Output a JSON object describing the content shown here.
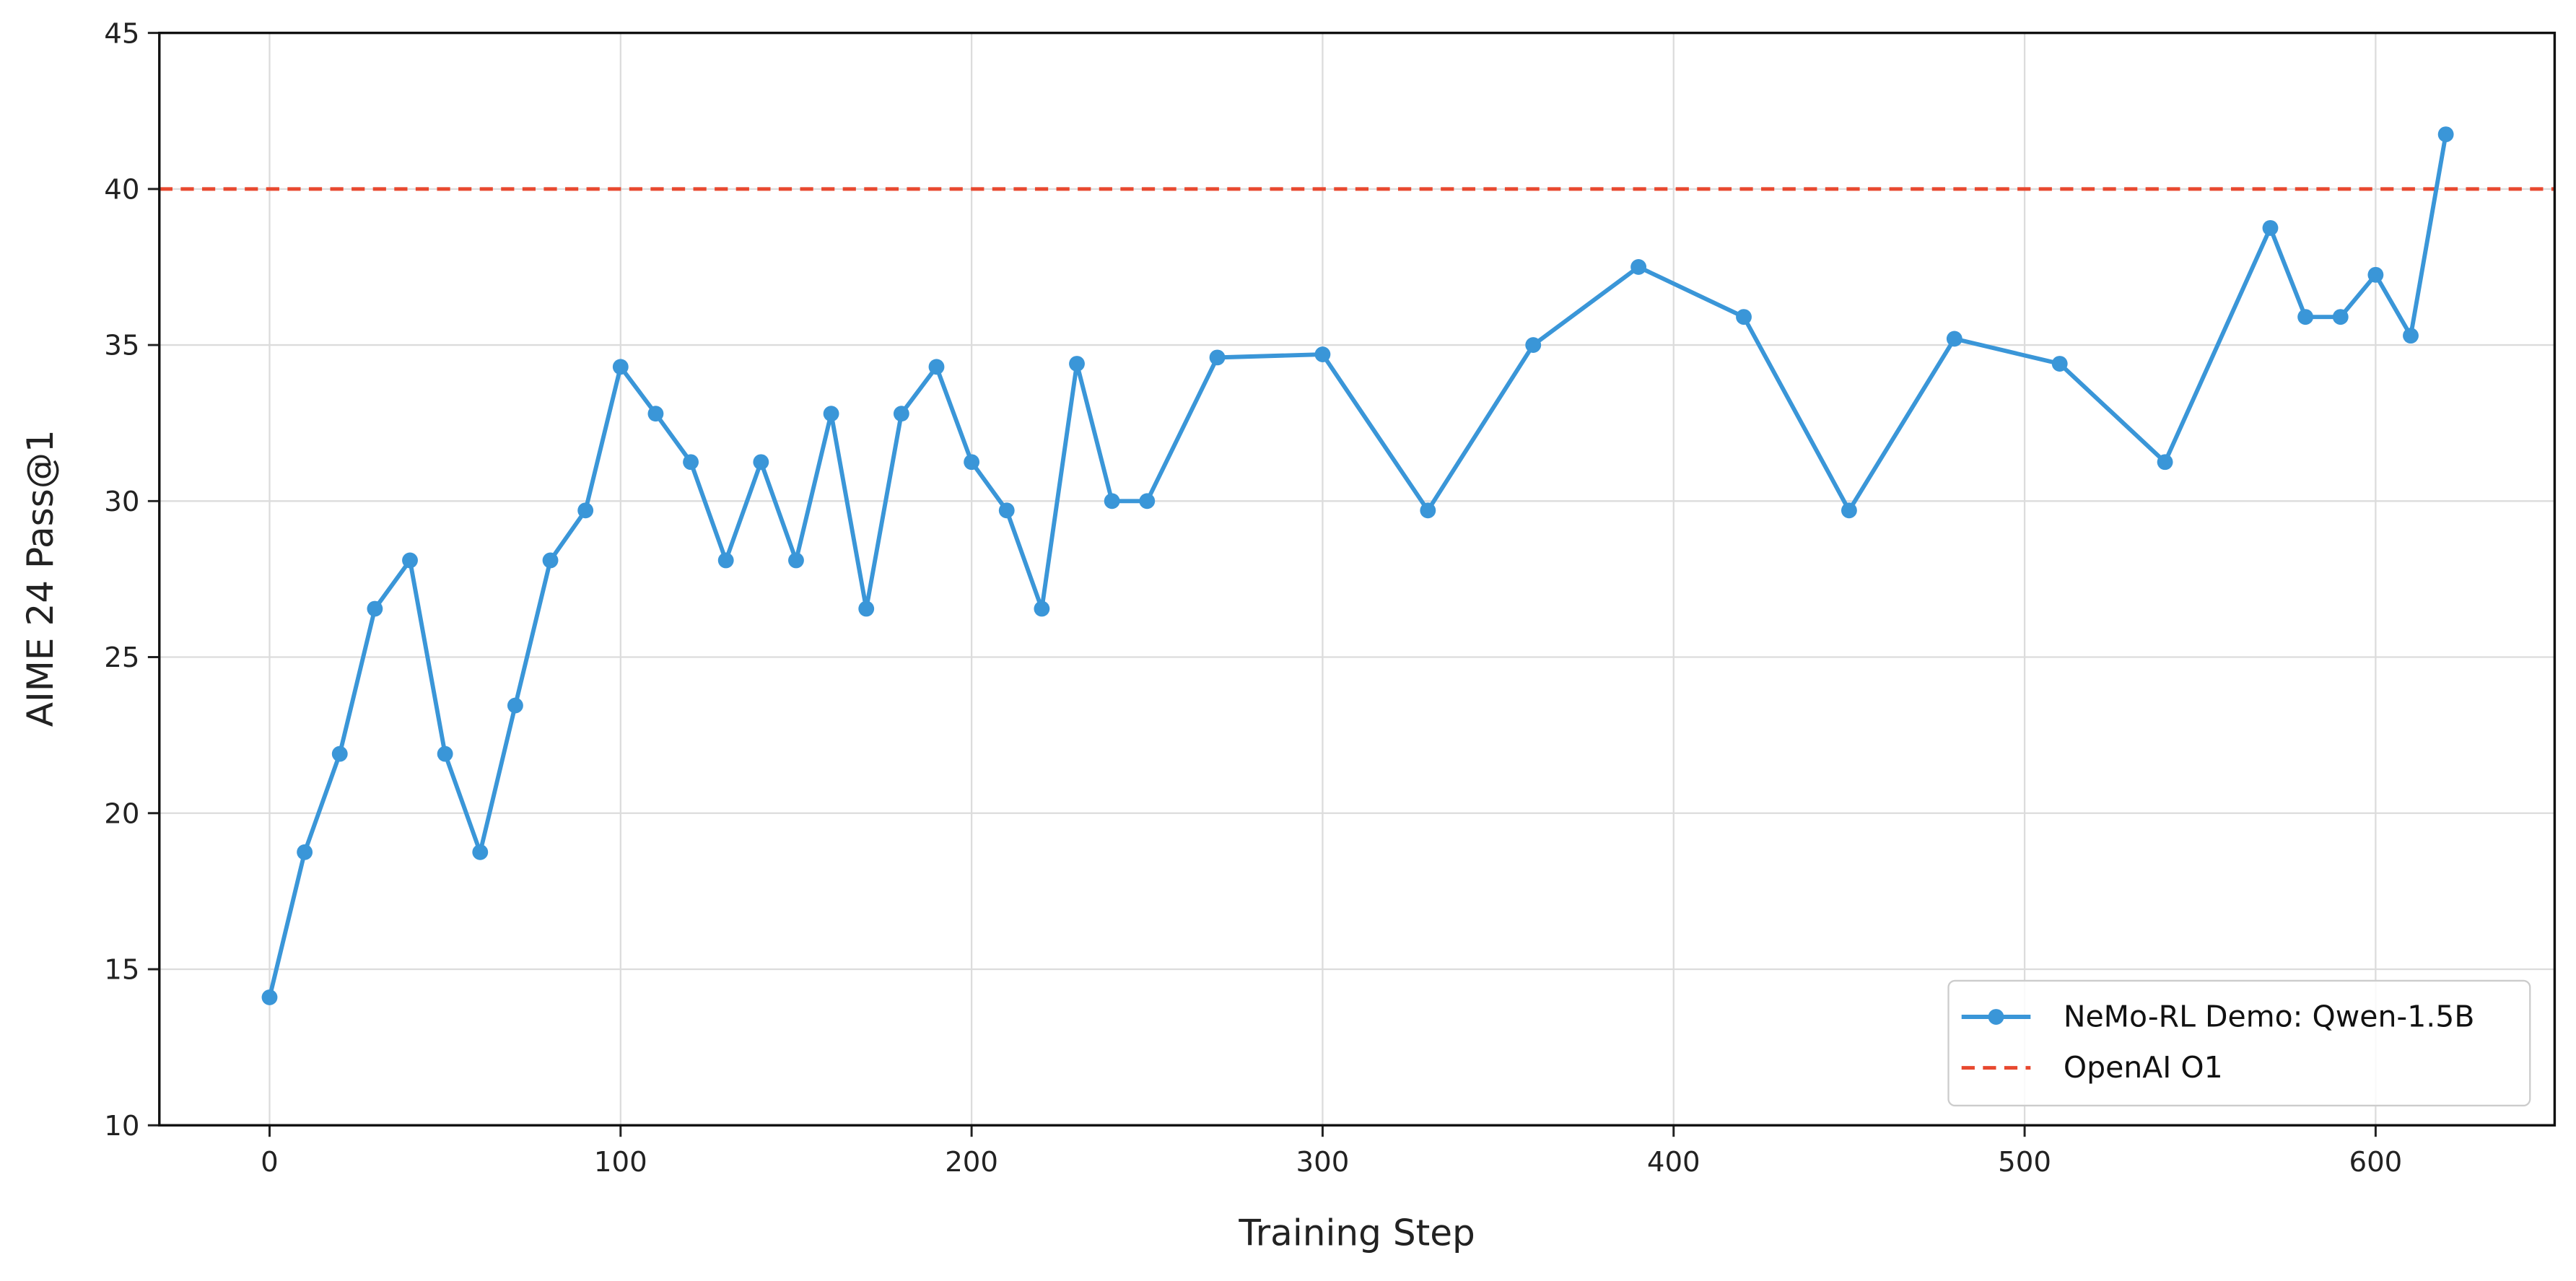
{
  "chart_data": {
    "type": "line",
    "xlabel": "Training Step",
    "ylabel": "AIME 24 Pass@1",
    "x": [
      0,
      10,
      20,
      30,
      40,
      50,
      60,
      70,
      80,
      90,
      100,
      110,
      120,
      130,
      140,
      150,
      160,
      170,
      180,
      190,
      200,
      210,
      220,
      230,
      240,
      250,
      270,
      300,
      330,
      360,
      390,
      420,
      450,
      480,
      510,
      540,
      570,
      580,
      590,
      600,
      610,
      620
    ],
    "series": [
      {
        "name": "NeMo-RL Demo: Qwen-1.5B",
        "color": "#3a96d8",
        "values": [
          14.1,
          18.75,
          21.9,
          26.55,
          28.1,
          21.9,
          18.75,
          23.45,
          28.1,
          29.7,
          34.3,
          32.8,
          31.25,
          28.1,
          31.25,
          28.1,
          32.8,
          26.55,
          32.8,
          34.3,
          31.25,
          29.7,
          26.55,
          34.4,
          30.0,
          30.0,
          34.6,
          34.7,
          29.7,
          35.0,
          37.5,
          35.9,
          29.7,
          35.2,
          34.4,
          31.25,
          38.75,
          35.9,
          35.9,
          37.25,
          35.3,
          41.75
        ]
      }
    ],
    "reference_lines": [
      {
        "name": "OpenAI O1",
        "value": 40,
        "color": "#e8482f"
      }
    ],
    "xlim": [
      -31.4,
      651
    ],
    "ylim": [
      10,
      45
    ],
    "xticks": [
      0,
      100,
      200,
      300,
      400,
      500,
      600
    ],
    "yticks": [
      10,
      15,
      20,
      25,
      30,
      35,
      40,
      45
    ],
    "grid": true,
    "legend": "lower right"
  }
}
